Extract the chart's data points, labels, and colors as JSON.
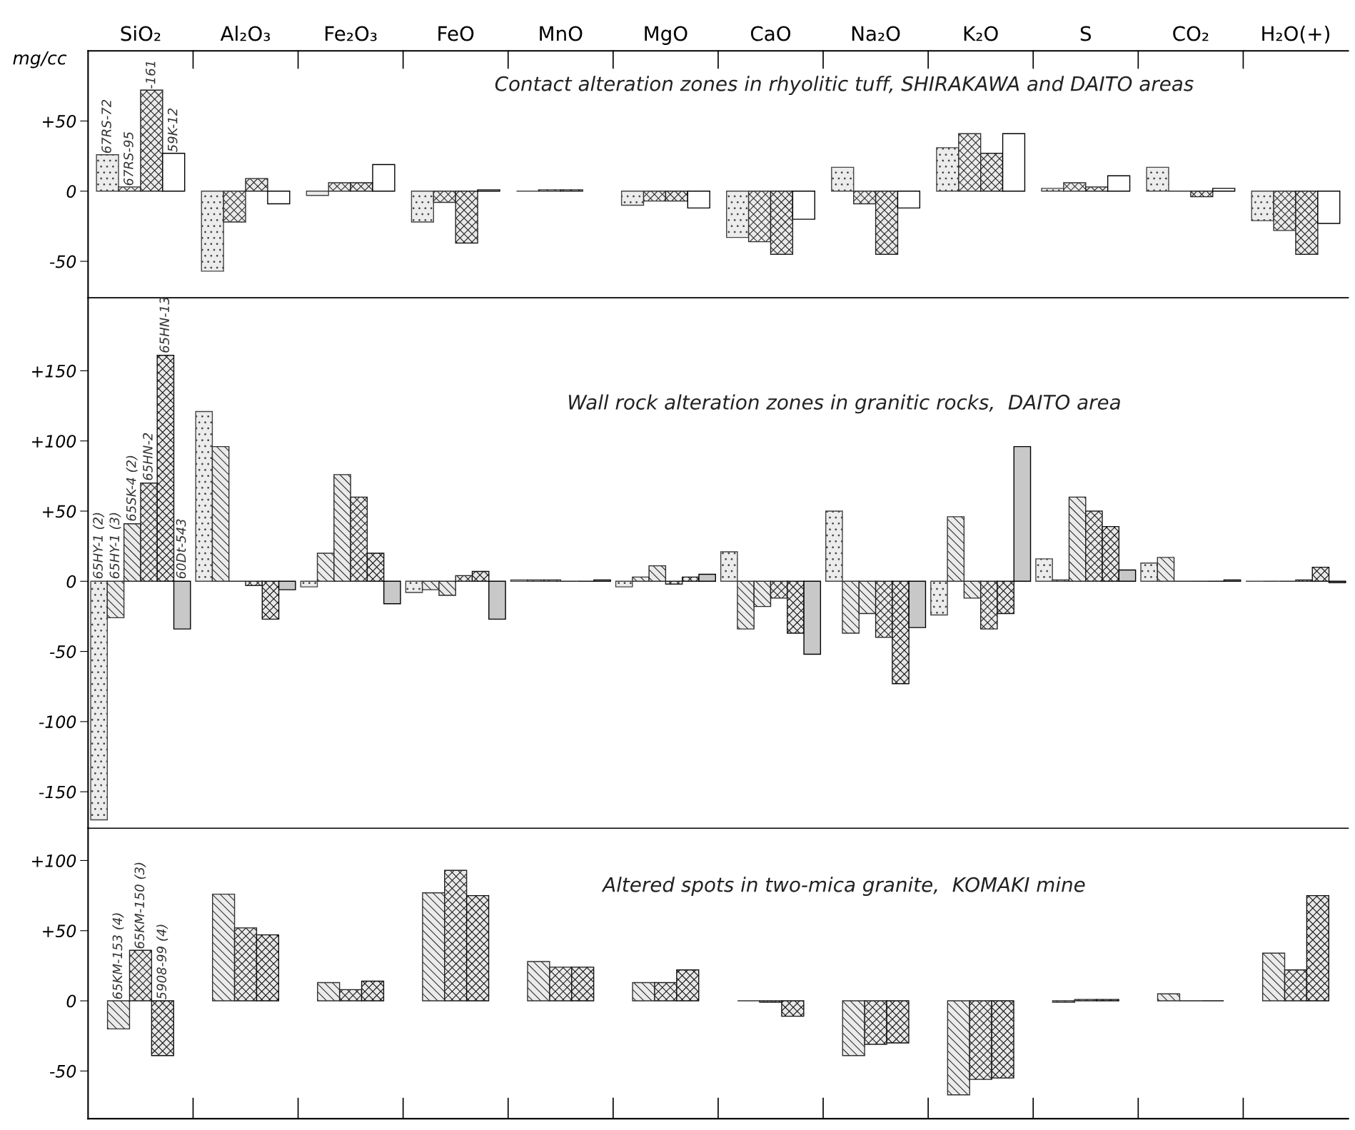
{
  "chart_data": [
    {
      "type": "bar",
      "title": "Contact alteration zones in rhyolitic tuff, SHIRAKAWA and DAITO areas",
      "ylabel": "mg/cc",
      "categories": [
        "SiO₂",
        "Al₂O₃",
        "Fe₂O₃",
        "FeO",
        "MnO",
        "MgO",
        "CaO",
        "Na₂O",
        "K₂O",
        "S",
        "CO₂",
        "H₂O(+)"
      ],
      "series": [
        {
          "name": "67RS-72",
          "color": "#444444",
          "values": [
            26,
            -57,
            -3,
            -22,
            0,
            -10,
            -33,
            17,
            31,
            2,
            17,
            -21
          ]
        },
        {
          "name": "67RS-95",
          "color": "#333333",
          "values": [
            3,
            -22,
            6,
            -8,
            1,
            -7,
            -36,
            -9,
            41,
            6,
            0,
            -28
          ]
        },
        {
          "name": "-161",
          "color": "#222222",
          "values": [
            72,
            9,
            6,
            -37,
            1,
            -7,
            -45,
            -45,
            27,
            3,
            -4,
            -45
          ]
        },
        {
          "name": "59K-12",
          "color": "#ffffff",
          "values": [
            27,
            -9,
            19,
            1,
            null,
            -12,
            -20,
            -12,
            41,
            11,
            2,
            -23
          ]
        }
      ],
      "ylim": [
        -76,
        100
      ],
      "yticks": [
        {
          "value": 50,
          "label": "+50"
        },
        0,
        -50
      ],
      "grid": false,
      "legend": false
    },
    {
      "type": "bar",
      "title": "Wall rock alteration zones in granitic rocks,  DAITO area",
      "categories": [
        "SiO₂",
        "Al₂O₃",
        "Fe₂O₃",
        "FeO",
        "MnO",
        "MgO",
        "CaO",
        "Na₂O",
        "K₂O",
        "S",
        "CO₂",
        "H₂O(+)"
      ],
      "series": [
        {
          "name": "65HY-1 (2)",
          "color": "#444444",
          "values": [
            -170,
            121,
            -4,
            -8,
            1,
            -4,
            21,
            50,
            -24,
            16,
            13,
            0
          ]
        },
        {
          "name": "65HY-1 (3)",
          "color": "#333333",
          "values": [
            -26,
            96,
            20,
            -6,
            1,
            3,
            -34,
            -37,
            46,
            1,
            17,
            0
          ]
        },
        {
          "name": "65SK-4 (2)",
          "color": "#2a2a2a",
          "values": [
            41,
            0,
            76,
            -10,
            1,
            11,
            -18,
            -23,
            -12,
            60,
            0,
            0
          ]
        },
        {
          "name": "65HN-2",
          "color": "#222222",
          "values": [
            70,
            -3,
            60,
            4,
            0,
            -2,
            -12,
            -40,
            -34,
            50,
            0,
            1
          ]
        },
        {
          "name": "65HN-13",
          "color": "#111111",
          "values": [
            161,
            -27,
            20,
            7,
            0,
            3,
            -37,
            -73,
            -23,
            39,
            0,
            10
          ]
        },
        {
          "name": "60Dt-543",
          "color": "#c8c8c8",
          "values": [
            -34,
            -6,
            -16,
            -27,
            1,
            5,
            -52,
            -33,
            96,
            8,
            1,
            -1
          ]
        }
      ],
      "ylim": [
        -176,
        202
      ],
      "yticks": [
        {
          "value": 150,
          "label": "+150"
        },
        {
          "value": 100,
          "label": "+100"
        },
        {
          "value": 50,
          "label": "+50"
        },
        0,
        -50,
        -100,
        -150
      ],
      "grid": false,
      "legend": false,
      "tick_labels": "y"
    },
    {
      "type": "bar",
      "title": "Altered spots in two-mica granite,  KOMAKI mine",
      "categories": [
        "SiO₂",
        "Al₂O₃",
        "Fe₂O₃",
        "FeO",
        "MnO",
        "MgO",
        "CaO",
        "Na₂O",
        "K₂O",
        "S",
        "CO₂",
        "H₂O(+)"
      ],
      "series": [
        {
          "name": "65KM-153 (4)",
          "color": "#333333",
          "values": [
            -20,
            76,
            13,
            77,
            28,
            13,
            0,
            -39,
            -67,
            -1,
            5,
            34
          ]
        },
        {
          "name": "65KM-150 (3)",
          "color": "#222222",
          "values": [
            36,
            52,
            8,
            93,
            24,
            13,
            -1,
            -31,
            -56,
            1,
            0,
            22
          ]
        },
        {
          "name": "5908-99 (4)",
          "color": "#111111",
          "values": [
            -39,
            47,
            14,
            75,
            24,
            22,
            -11,
            -30,
            -55,
            1,
            0,
            75
          ]
        }
      ],
      "ylim": [
        -84,
        123
      ],
      "yticks": [
        {
          "value": 100,
          "label": "+100"
        },
        {
          "value": 50,
          "label": "+50"
        },
        0,
        -50
      ],
      "grid": false,
      "legend": false,
      "tick_labels": "y"
    }
  ]
}
